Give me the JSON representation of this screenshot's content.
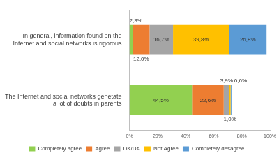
{
  "chart_data": {
    "type": "bar",
    "orientation": "horizontal",
    "stacked": true,
    "data_labels": true,
    "grid": false,
    "legend": "bottom",
    "categories": [
      "In general, information found on the Internet and social networks is rigorous",
      "The Internet and social networks genetate a lot of doubts in parents"
    ],
    "series": [
      {
        "name": "Completely agree",
        "color": "#92d050",
        "values": [
          2.3,
          44.5
        ],
        "value_labels": [
          "2,3%",
          "44,5%"
        ]
      },
      {
        "name": "Agree",
        "color": "#ed7d31",
        "values": [
          12.0,
          22.6
        ],
        "value_labels": [
          "12,0%",
          "22,6%"
        ]
      },
      {
        "name": "DK/DA",
        "color": "#a5a5a5",
        "values": [
          16.7,
          3.9
        ],
        "value_labels": [
          "16,7%",
          "3,9%"
        ]
      },
      {
        "name": "Not Agree",
        "color": "#ffc000",
        "values": [
          39.8,
          1.0
        ],
        "value_labels": [
          "39,8%",
          "1,0%"
        ]
      },
      {
        "name": "Completely desagree",
        "color": "#5b9bd5",
        "values": [
          26.8,
          0.6
        ],
        "value_labels": [
          "26,8%",
          "0,6%"
        ]
      }
    ],
    "xlim": [
      0,
      100
    ],
    "xticks": [
      {
        "value": 0,
        "label": "0%"
      },
      {
        "value": 20,
        "label": "20%"
      },
      {
        "value": 40,
        "label": "40%"
      },
      {
        "value": 60,
        "label": "60%"
      },
      {
        "value": 80,
        "label": "80%"
      },
      {
        "value": 100,
        "label": "100%"
      }
    ]
  }
}
